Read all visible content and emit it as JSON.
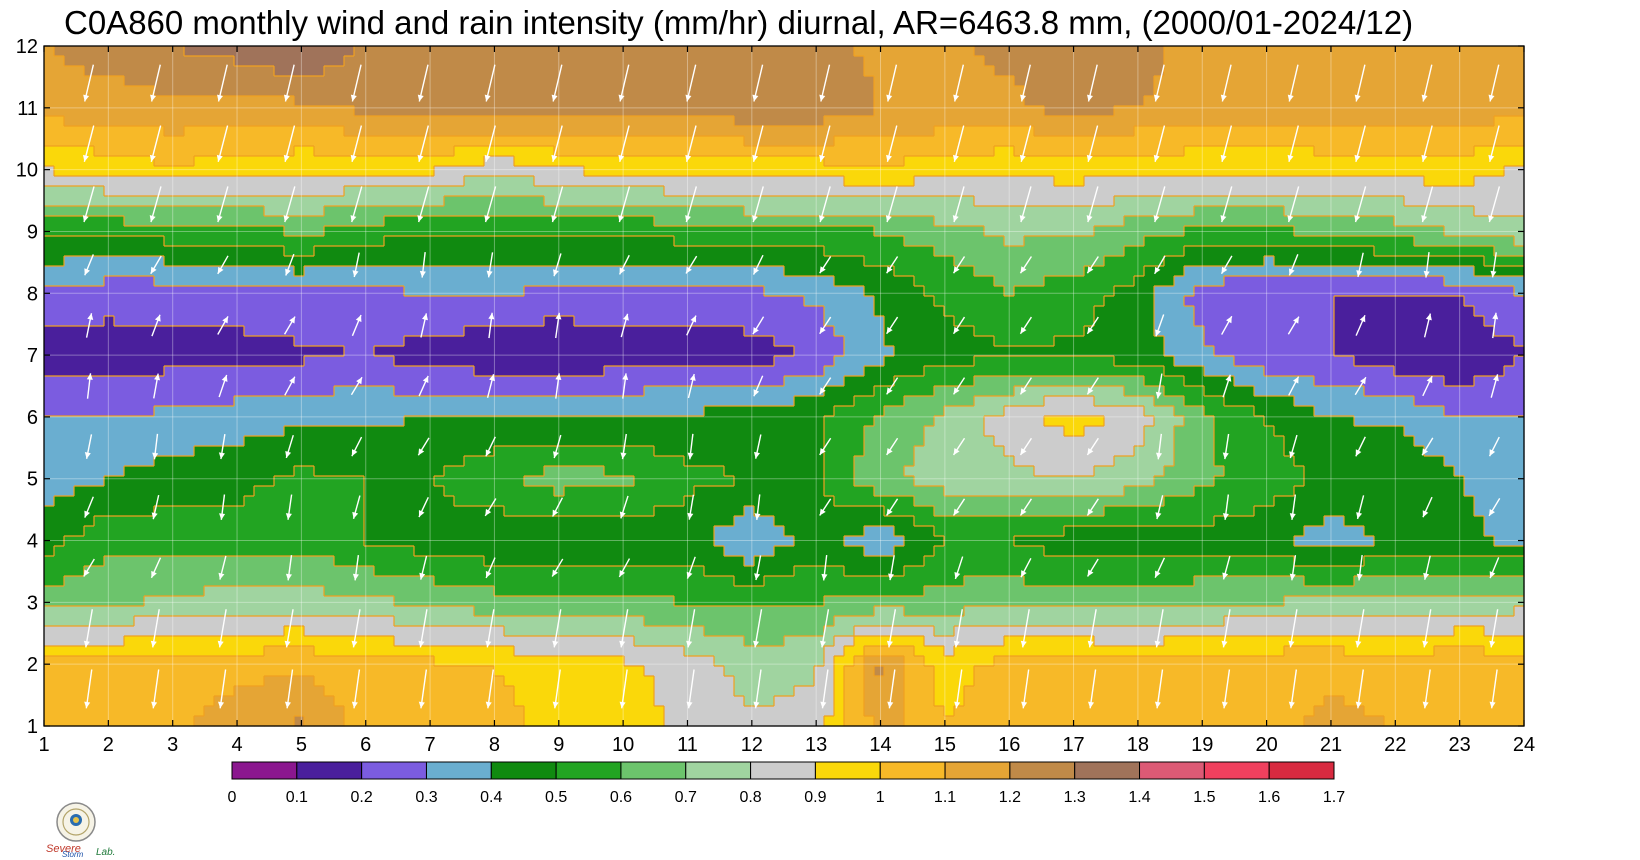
{
  "title": "C0A860 monthly wind and rain intensity (mm/hr) diurnal, AR=6463.8 mm, (2000/01-2024/12)",
  "logo_text": "Severe Storm Lab.",
  "chart_data": {
    "type": "heatmap",
    "subtype": "filled-contour with wind vectors",
    "title": "C0A860 monthly wind and rain intensity (mm/hr) diurnal, AR=6463.8 mm, (2000/01-2024/12)",
    "xlabel": "",
    "ylabel": "",
    "x_ticks": [
      1,
      2,
      3,
      4,
      5,
      6,
      7,
      8,
      9,
      10,
      11,
      12,
      13,
      14,
      15,
      16,
      17,
      18,
      19,
      20,
      21,
      22,
      23,
      24
    ],
    "y_ticks": [
      1,
      2,
      3,
      4,
      5,
      6,
      7,
      8,
      9,
      10,
      11,
      12
    ],
    "xlim": [
      1,
      24
    ],
    "ylim": [
      1,
      12
    ],
    "grid": true,
    "contour_line_color": "#f0a020",
    "colorbar": {
      "levels": [
        0,
        0.1,
        0.2,
        0.3,
        0.4,
        0.5,
        0.6,
        0.7,
        0.8,
        0.9,
        1,
        1.1,
        1.2,
        1.3,
        1.4,
        1.5,
        1.6,
        1.7
      ],
      "colors": [
        "#8b178f",
        "#4a1f9c",
        "#7b5ce0",
        "#6aaed0",
        "#108a10",
        "#22a422",
        "#6cc46c",
        "#a0d4a0",
        "#cccccc",
        "#fad80a",
        "#f7b928",
        "#e5a535",
        "#c08a48",
        "#a0735a",
        "#dc5a75",
        "#f0405e",
        "#d82a40"
      ]
    },
    "intensity_grid": [
      [
        1.08,
        1.05,
        1.08,
        1.15,
        1.22,
        1.06,
        1.08,
        1.05,
        0.95,
        0.95,
        0.88,
        0.82,
        0.85,
        1.15,
        1.0,
        1.08,
        1.05,
        1.05,
        1.08,
        1.08,
        1.12,
        1.1,
        1.05,
        1.1
      ],
      [
        1.05,
        1.02,
        1.05,
        1.06,
        1.08,
        1.02,
        1.02,
        1.0,
        0.92,
        0.92,
        0.85,
        0.75,
        0.78,
        1.22,
        0.95,
        1.05,
        1.05,
        1.02,
        1.05,
        1.08,
        1.08,
        1.05,
        1.08,
        1.05
      ],
      [
        0.65,
        0.68,
        0.72,
        0.75,
        0.75,
        0.72,
        0.68,
        0.64,
        0.62,
        0.62,
        0.6,
        0.58,
        0.6,
        0.62,
        0.65,
        0.66,
        0.66,
        0.68,
        0.68,
        0.7,
        0.72,
        0.72,
        0.75,
        0.76
      ],
      [
        0.45,
        0.58,
        0.55,
        0.55,
        0.56,
        0.5,
        0.45,
        0.42,
        0.41,
        0.42,
        0.45,
        0.3,
        0.45,
        0.32,
        0.5,
        0.5,
        0.44,
        0.44,
        0.45,
        0.44,
        0.35,
        0.42,
        0.42,
        0.38
      ],
      [
        0.35,
        0.4,
        0.45,
        0.47,
        0.52,
        0.5,
        0.5,
        0.58,
        0.65,
        0.62,
        0.52,
        0.5,
        0.49,
        0.68,
        0.75,
        0.78,
        0.8,
        0.75,
        0.62,
        0.55,
        0.48,
        0.5,
        0.4,
        0.35
      ],
      [
        0.3,
        0.3,
        0.32,
        0.35,
        0.38,
        0.38,
        0.4,
        0.4,
        0.4,
        0.41,
        0.42,
        0.44,
        0.48,
        0.62,
        0.72,
        0.85,
        0.95,
        0.85,
        0.62,
        0.5,
        0.4,
        0.38,
        0.3,
        0.3
      ],
      [
        0.15,
        0.15,
        0.16,
        0.16,
        0.18,
        0.2,
        0.15,
        0.12,
        0.09,
        0.14,
        0.15,
        0.15,
        0.22,
        0.38,
        0.46,
        0.48,
        0.48,
        0.45,
        0.32,
        0.22,
        0.2,
        0.14,
        0.1,
        0.2
      ],
      [
        0.28,
        0.24,
        0.24,
        0.26,
        0.28,
        0.28,
        0.3,
        0.3,
        0.28,
        0.27,
        0.27,
        0.28,
        0.32,
        0.42,
        0.52,
        0.6,
        0.55,
        0.45,
        0.25,
        0.2,
        0.2,
        0.2,
        0.2,
        0.3
      ],
      [
        0.52,
        0.52,
        0.55,
        0.55,
        0.62,
        0.55,
        0.5,
        0.52,
        0.52,
        0.52,
        0.55,
        0.58,
        0.58,
        0.6,
        0.66,
        0.72,
        0.72,
        0.64,
        0.58,
        0.58,
        0.62,
        0.65,
        0.72,
        0.78
      ],
      [
        0.9,
        0.95,
        0.98,
        0.95,
        0.92,
        0.92,
        0.92,
        0.82,
        0.9,
        0.92,
        0.95,
        0.95,
        0.95,
        1.0,
        0.92,
        0.92,
        0.95,
        0.92,
        0.92,
        0.92,
        0.94,
        0.95,
        0.95,
        0.88
      ],
      [
        1.15,
        1.15,
        1.18,
        1.15,
        1.18,
        1.22,
        1.26,
        1.28,
        1.25,
        1.22,
        1.22,
        1.28,
        1.28,
        1.2,
        1.2,
        1.18,
        1.24,
        1.2,
        1.18,
        1.15,
        1.15,
        1.15,
        1.15,
        1.15
      ],
      [
        1.2,
        1.25,
        1.3,
        1.35,
        1.42,
        1.28,
        1.28,
        1.28,
        1.25,
        1.22,
        1.2,
        1.22,
        1.22,
        1.18,
        1.18,
        1.22,
        1.25,
        1.22,
        1.18,
        1.18,
        1.15,
        1.15,
        1.15,
        1.15
      ]
    ]
  }
}
